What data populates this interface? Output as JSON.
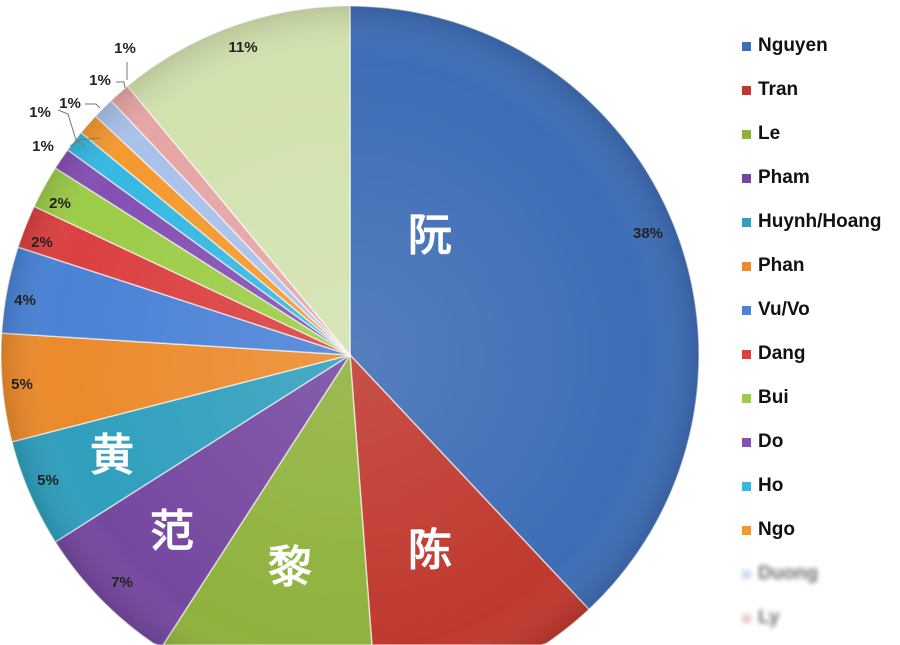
{
  "chart_data": {
    "type": "pie",
    "start_angle_deg": 0,
    "direction": "clockwise",
    "slices": [
      {
        "name": "Nguyen",
        "value": 38,
        "label": "38%",
        "color": "#3e6db6",
        "hanzi": "阮"
      },
      {
        "name": "Tran",
        "value": 11,
        "label": null,
        "color": "#c0392f",
        "hanzi": "陈"
      },
      {
        "name": "Le",
        "value": 10,
        "label": null,
        "color": "#8fb23d",
        "hanzi": "黎"
      },
      {
        "name": "Pham",
        "value": 7,
        "label": "7%",
        "color": "#7548a0",
        "hanzi": "范"
      },
      {
        "name": "Huynh/Hoang",
        "value": 5,
        "label": "5%",
        "color": "#2f9fbd",
        "hanzi": "黄"
      },
      {
        "name": "Phan",
        "value": 5,
        "label": "5%",
        "color": "#ec8a2c",
        "hanzi": null
      },
      {
        "name": "Vu/Vo",
        "value": 4,
        "label": "4%",
        "color": "#4a82d6",
        "hanzi": null
      },
      {
        "name": "Dang",
        "value": 2,
        "label": "2%",
        "color": "#dc4040",
        "hanzi": null
      },
      {
        "name": "Bui",
        "value": 2,
        "label": "2%",
        "color": "#9ccc48",
        "hanzi": null
      },
      {
        "name": "Do",
        "value": 1,
        "label": "1%",
        "color": "#8450b4",
        "hanzi": null
      },
      {
        "name": "Ho",
        "value": 1,
        "label": "1%",
        "color": "#36b8e2",
        "hanzi": null
      },
      {
        "name": "Ngo",
        "value": 1,
        "label": "1%",
        "color": "#f5992f",
        "hanzi": null
      },
      {
        "name": "Duong",
        "value": 1,
        "label": "1%",
        "color": "#a9c1ea",
        "hanzi": null,
        "blurred": true
      },
      {
        "name": "Ly",
        "value": 1,
        "label": "1%",
        "color": "#e6a5a5",
        "hanzi": null,
        "blurred": true
      },
      {
        "name": "",
        "value": 11,
        "label": "11%",
        "color": "#d2e2ae",
        "hanzi": null
      }
    ],
    "legend": {
      "placement": "right"
    }
  }
}
